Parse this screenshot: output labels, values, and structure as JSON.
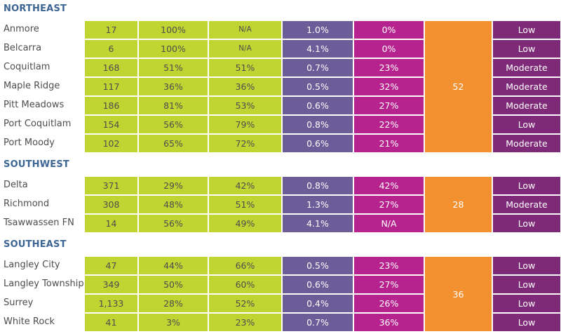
{
  "colors": {
    "green": "#c0d531",
    "purple": "#6c5c98",
    "magenta": "#b6238e",
    "orange": "#f39131",
    "plum": "#7e2a78",
    "heading": "#3d6593"
  },
  "regions": [
    {
      "name": "NORTHEAST",
      "merged_value": "52",
      "rows": [
        {
          "municipality": "Anmore",
          "values": [
            "17",
            "100%",
            "N/A",
            "1.0%",
            "0%"
          ],
          "rating": "Low"
        },
        {
          "municipality": "Belcarra",
          "values": [
            "6",
            "100%",
            "N/A",
            "4.1%",
            "0%"
          ],
          "rating": "Low"
        },
        {
          "municipality": "Coquitlam",
          "values": [
            "168",
            "51%",
            "51%",
            "0.7%",
            "23%"
          ],
          "rating": "Moderate"
        },
        {
          "municipality": "Maple Ridge",
          "values": [
            "117",
            "36%",
            "36%",
            "0.5%",
            "32%"
          ],
          "rating": "Moderate"
        },
        {
          "municipality": "Pitt Meadows",
          "values": [
            "186",
            "81%",
            "53%",
            "0.6%",
            "27%"
          ],
          "rating": "Moderate"
        },
        {
          "municipality": "Port Coquitlam",
          "values": [
            "154",
            "56%",
            "79%",
            "0.8%",
            "22%"
          ],
          "rating": "Low"
        },
        {
          "municipality": "Port Moody",
          "values": [
            "102",
            "65%",
            "72%",
            "0.6%",
            "21%"
          ],
          "rating": "Moderate"
        }
      ]
    },
    {
      "name": "SOUTHWEST",
      "merged_value": "28",
      "rows": [
        {
          "municipality": "Delta",
          "values": [
            "371",
            "29%",
            "42%",
            "0.8%",
            "42%"
          ],
          "rating": "Low"
        },
        {
          "municipality": "Richmond",
          "values": [
            "308",
            "48%",
            "51%",
            "1.3%",
            "27%"
          ],
          "rating": "Moderate"
        },
        {
          "municipality": "Tsawwassen FN",
          "values": [
            "14",
            "56%",
            "49%",
            "4.1%",
            "N/A"
          ],
          "rating": "Low"
        }
      ]
    },
    {
      "name": "SOUTHEAST",
      "merged_value": "36",
      "rows": [
        {
          "municipality": "Langley City",
          "values": [
            "47",
            "44%",
            "66%",
            "0.5%",
            "23%"
          ],
          "rating": "Low"
        },
        {
          "municipality": "Langley Township",
          "values": [
            "349",
            "50%",
            "60%",
            "0.6%",
            "27%"
          ],
          "rating": "Low"
        },
        {
          "municipality": "Surrey",
          "values": [
            "1,133",
            "28%",
            "52%",
            "0.4%",
            "26%"
          ],
          "rating": "Low"
        },
        {
          "municipality": "White Rock",
          "values": [
            "41",
            "3%",
            "23%",
            "0.7%",
            "36%"
          ],
          "rating": "Low"
        }
      ]
    }
  ]
}
